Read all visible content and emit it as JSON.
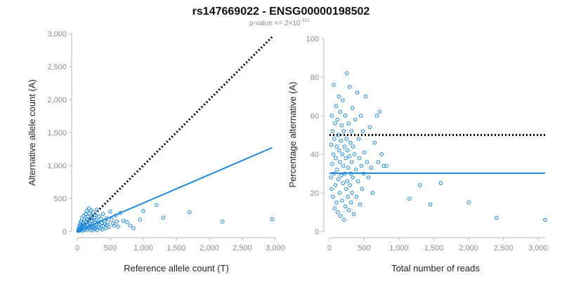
{
  "title": "rs147669022 - ENSG00000198502",
  "subtitle": {
    "prefix": "p-value <= 2",
    "times": "×",
    "base": "10",
    "exponent": "-311"
  },
  "colors": {
    "points": "#1e88d9",
    "fit_line": "#1e88d9",
    "reference_line": "#000000",
    "axis": "#b8b8b8"
  },
  "chart_data": [
    {
      "type": "scatter",
      "xlabel": "Reference allele count (T)",
      "ylabel": "Alternative allele count (A)",
      "xlim": [
        0,
        3000
      ],
      "ylim": [
        0,
        3000
      ],
      "xticks": [
        0,
        500,
        1000,
        1500,
        2000,
        2500,
        3000
      ],
      "yticks": [
        0,
        500,
        1000,
        1500,
        2000,
        2500,
        3000
      ],
      "xtick_labels": [
        "0",
        "500",
        "1,000",
        "1,500",
        "2,000",
        "2,500",
        "3,000"
      ],
      "ytick_labels": [
        "0",
        "500",
        "1,000",
        "1,500",
        "2,000",
        "2,500",
        "3,000"
      ],
      "fit_line": {
        "x": [
          0,
          2950
        ],
        "y": [
          0,
          1270
        ]
      },
      "reference_line": {
        "x": [
          0,
          2950
        ],
        "y": [
          0,
          2950
        ]
      },
      "points": [
        [
          15,
          5
        ],
        [
          20,
          30
        ],
        [
          25,
          60
        ],
        [
          30,
          20
        ],
        [
          35,
          90
        ],
        [
          40,
          45
        ],
        [
          45,
          120
        ],
        [
          50,
          15
        ],
        [
          55,
          150
        ],
        [
          60,
          70
        ],
        [
          65,
          35
        ],
        [
          70,
          200
        ],
        [
          75,
          95
        ],
        [
          80,
          10
        ],
        [
          85,
          130
        ],
        [
          90,
          55
        ],
        [
          95,
          240
        ],
        [
          100,
          80
        ],
        [
          105,
          25
        ],
        [
          110,
          175
        ],
        [
          115,
          110
        ],
        [
          120,
          40
        ],
        [
          125,
          260
        ],
        [
          130,
          140
        ],
        [
          135,
          65
        ],
        [
          140,
          310
        ],
        [
          145,
          185
        ],
        [
          150,
          20
        ],
        [
          155,
          95
        ],
        [
          160,
          220
        ],
        [
          165,
          50
        ],
        [
          170,
          150
        ],
        [
          175,
          350
        ],
        [
          180,
          75
        ],
        [
          185,
          275
        ],
        [
          190,
          120
        ],
        [
          195,
          30
        ],
        [
          200,
          195
        ],
        [
          205,
          90
        ],
        [
          210,
          320
        ],
        [
          215,
          60
        ],
        [
          220,
          160
        ],
        [
          225,
          240
        ],
        [
          230,
          15
        ],
        [
          235,
          110
        ],
        [
          240,
          290
        ],
        [
          245,
          45
        ],
        [
          250,
          180
        ],
        [
          255,
          85
        ],
        [
          260,
          210
        ],
        [
          265,
          130
        ],
        [
          270,
          35
        ],
        [
          275,
          250
        ],
        [
          280,
          100
        ],
        [
          285,
          60
        ],
        [
          290,
          170
        ],
        [
          295,
          330
        ],
        [
          300,
          20
        ],
        [
          310,
          140
        ],
        [
          320,
          70
        ],
        [
          330,
          230
        ],
        [
          340,
          105
        ],
        [
          350,
          45
        ],
        [
          360,
          190
        ],
        [
          370,
          125
        ],
        [
          380,
          30
        ],
        [
          390,
          265
        ],
        [
          400,
          80
        ],
        [
          410,
          160
        ],
        [
          420,
          110
        ],
        [
          430,
          50
        ],
        [
          440,
          200
        ],
        [
          450,
          95
        ],
        [
          460,
          140
        ],
        [
          480,
          70
        ],
        [
          500,
          300
        ],
        [
          520,
          180
        ],
        [
          540,
          120
        ],
        [
          560,
          90
        ],
        [
          580,
          240
        ],
        [
          600,
          150
        ],
        [
          620,
          75
        ],
        [
          650,
          280
        ],
        [
          700,
          160
        ],
        [
          750,
          140
        ],
        [
          800,
          90
        ],
        [
          850,
          50
        ],
        [
          950,
          180
        ],
        [
          1000,
          310
        ],
        [
          1200,
          400
        ],
        [
          1300,
          210
        ],
        [
          1700,
          290
        ],
        [
          2200,
          150
        ],
        [
          2950,
          185
        ]
      ]
    },
    {
      "type": "scatter",
      "xlabel": "Total number of reads",
      "ylabel": "Percentage alternative (A)",
      "xlim": [
        0,
        3100
      ],
      "ylim": [
        0,
        100
      ],
      "xticks": [
        0,
        500,
        1000,
        1500,
        2000,
        2500,
        3000
      ],
      "yticks": [
        0,
        20,
        40,
        60,
        80,
        100
      ],
      "xtick_labels": [
        "0",
        "500",
        "1,000",
        "1,500",
        "2,000",
        "2,500",
        "3,000"
      ],
      "ytick_labels": [
        "0",
        "20",
        "40",
        "60",
        "80",
        "100"
      ],
      "fit_line": {
        "x": [
          0,
          3100
        ],
        "y": [
          30.2,
          30.2
        ]
      },
      "reference_line": {
        "x": [
          0,
          3100
        ],
        "y": [
          50,
          50
        ]
      },
      "points": [
        [
          20,
          28
        ],
        [
          25,
          45
        ],
        [
          30,
          22
        ],
        [
          35,
          60
        ],
        [
          40,
          35
        ],
        [
          45,
          52
        ],
        [
          50,
          18
        ],
        [
          55,
          40
        ],
        [
          60,
          76
        ],
        [
          65,
          30
        ],
        [
          70,
          48
        ],
        [
          75,
          12
        ],
        [
          80,
          56
        ],
        [
          85,
          24
        ],
        [
          90,
          38
        ],
        [
          95,
          65
        ],
        [
          100,
          15
        ],
        [
          105,
          44
        ],
        [
          110,
          32
        ],
        [
          115,
          58
        ],
        [
          120,
          10
        ],
        [
          125,
          50
        ],
        [
          130,
          27
        ],
        [
          135,
          70
        ],
        [
          140,
          42
        ],
        [
          145,
          20
        ],
        [
          150,
          36
        ],
        [
          155,
          62
        ],
        [
          160,
          8
        ],
        [
          165,
          47
        ],
        [
          170,
          29
        ],
        [
          175,
          55
        ],
        [
          180,
          16
        ],
        [
          185,
          40
        ],
        [
          190,
          68
        ],
        [
          195,
          25
        ],
        [
          200,
          34
        ],
        [
          205,
          52
        ],
        [
          210,
          6
        ],
        [
          215,
          44
        ],
        [
          220,
          30
        ],
        [
          225,
          60
        ],
        [
          230,
          13
        ],
        [
          235,
          38
        ],
        [
          240,
          22
        ],
        [
          245,
          48
        ],
        [
          250,
          82
        ],
        [
          255,
          26
        ],
        [
          260,
          42
        ],
        [
          265,
          18
        ],
        [
          270,
          33
        ],
        [
          275,
          56
        ],
        [
          280,
          11
        ],
        [
          285,
          39
        ],
        [
          290,
          75
        ],
        [
          295,
          24
        ],
        [
          300,
          46
        ],
        [
          305,
          30
        ],
        [
          310,
          15
        ],
        [
          315,
          52
        ],
        [
          320,
          36
        ],
        [
          325,
          20
        ],
        [
          330,
          64
        ],
        [
          335,
          28
        ],
        [
          340,
          44
        ],
        [
          350,
          9
        ],
        [
          360,
          40
        ],
        [
          370,
          58
        ],
        [
          380,
          32
        ],
        [
          390,
          18
        ],
        [
          400,
          72
        ],
        [
          410,
          26
        ],
        [
          420,
          48
        ],
        [
          430,
          38
        ],
        [
          440,
          14
        ],
        [
          450,
          60
        ],
        [
          460,
          34
        ],
        [
          470,
          22
        ],
        [
          480,
          52
        ],
        [
          490,
          30
        ],
        [
          500,
          41
        ],
        [
          520,
          70
        ],
        [
          540,
          36
        ],
        [
          560,
          28
        ],
        [
          580,
          54
        ],
        [
          600,
          33
        ],
        [
          620,
          20
        ],
        [
          650,
          46
        ],
        [
          680,
          60
        ],
        [
          700,
          36
        ],
        [
          720,
          62
        ],
        [
          750,
          40
        ],
        [
          780,
          34
        ],
        [
          820,
          34
        ],
        [
          1150,
          17
        ],
        [
          1300,
          24
        ],
        [
          1450,
          14
        ],
        [
          1600,
          25
        ],
        [
          2000,
          15
        ],
        [
          2400,
          7
        ],
        [
          3100,
          6
        ]
      ]
    }
  ]
}
